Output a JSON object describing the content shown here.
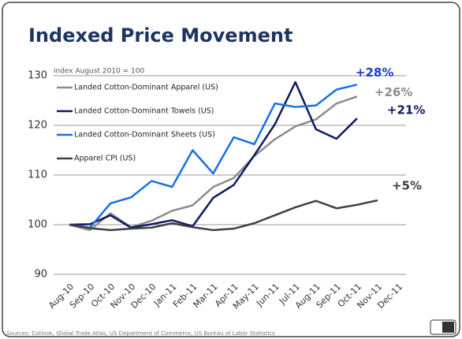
{
  "chart_data": {
    "type": "line",
    "title": "Indexed Price Movement",
    "subtitle": "index August 2010 = 100",
    "source": "Sources: Cotlook, Global Trade Atlas, US Department of Commerce, US Bureau of Labor Statistics",
    "categories": [
      "Aug-10",
      "Sep-10",
      "Oct-10",
      "Nov-10",
      "Dec-10",
      "Jan-11",
      "Feb-11",
      "Mar-11",
      "Apr-11",
      "May-11",
      "Jun-11",
      "Jul-11",
      "Aug-11",
      "Sep-11",
      "Oct-11",
      "Nov-11",
      "Dec-11"
    ],
    "series": [
      {
        "name": "Landed Cotton-Dominant Apparel (US)",
        "color": "#8c8c8c",
        "values": [
          100,
          98.9,
          102.3,
          99.5,
          100.8,
          102.8,
          103.9,
          107.6,
          109.4,
          113.8,
          117.2,
          119.8,
          121.2,
          124.4,
          125.8,
          null,
          null
        ]
      },
      {
        "name": "Landed Cotton-Dominant Towels (US)",
        "color": "#0d1a5e",
        "values": [
          100,
          100.1,
          101.9,
          99.4,
          100.1,
          100.9,
          99.7,
          105.4,
          108,
          114,
          120.2,
          128.7,
          119.2,
          117.3,
          121.4,
          null,
          null
        ]
      },
      {
        "name": "Landed Cotton-Dominant Sheets (US)",
        "color": "#1a6fe8",
        "values": [
          100,
          99.4,
          104.3,
          105.5,
          108.8,
          107.6,
          115,
          110.3,
          117.6,
          116.2,
          124.4,
          123.7,
          124,
          127.2,
          128.2,
          null,
          null
        ]
      },
      {
        "name": "Apparel CPI (US)",
        "color": "#404040",
        "values": [
          100,
          99.3,
          98.9,
          99.2,
          99.4,
          100.3,
          99.5,
          98.9,
          99.2,
          100.3,
          101.9,
          103.5,
          104.8,
          103.3,
          104,
          104.9,
          null
        ]
      }
    ],
    "annotations": [
      {
        "text": "+28%",
        "color": "#1a3ad8"
      },
      {
        "text": "+26%",
        "color": "#8c8c8c"
      },
      {
        "text": "+21%",
        "color": "#0d1a5e"
      },
      {
        "text": "+5%",
        "color": "#404040"
      }
    ],
    "ylim": [
      90,
      130
    ],
    "yticks": [
      90,
      100,
      110,
      120,
      130
    ],
    "grid": true,
    "legend": "upper left"
  }
}
